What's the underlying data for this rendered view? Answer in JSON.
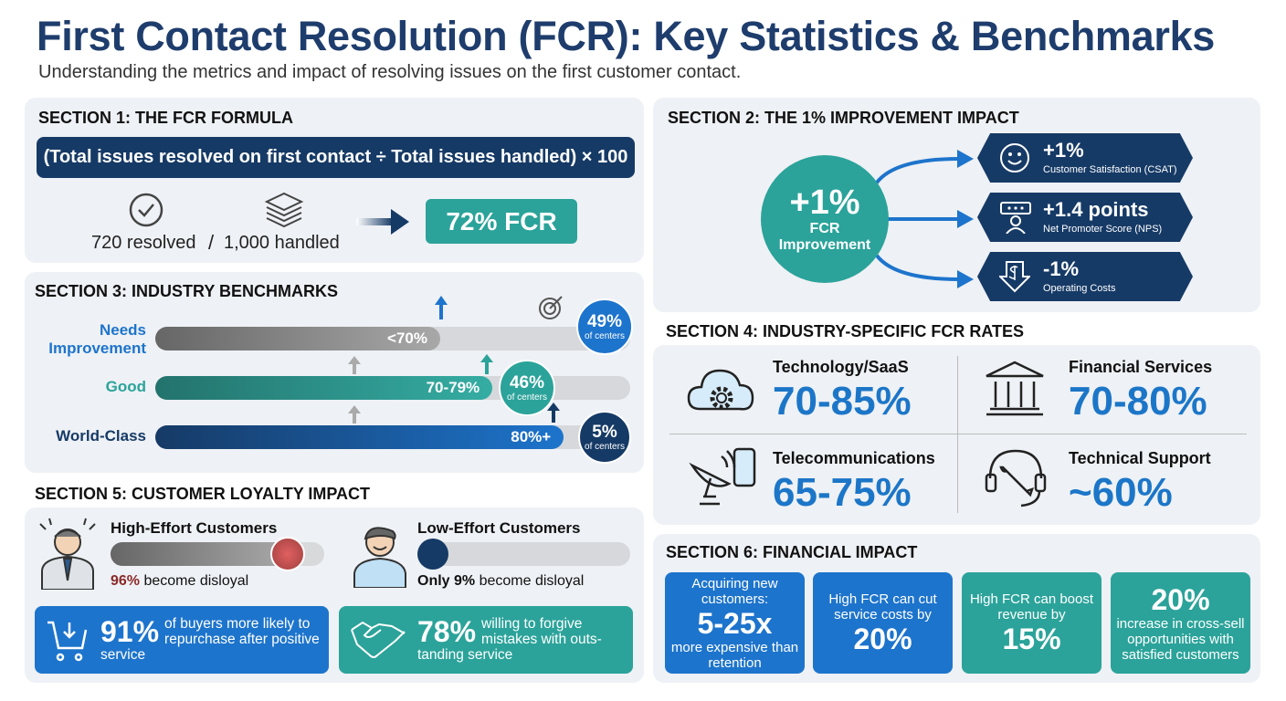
{
  "title": "First Contact Resolution (FCR): Key Statistics & Benchmarks",
  "subtitle": "Understanding the metrics and impact of resolving issues on the first customer contact.",
  "colors": {
    "navy": "#163a66",
    "blue": "#1d74cc",
    "teal": "#2ba39a",
    "gray": "#8a8c8f",
    "red": "#8b2a2a"
  },
  "section1": {
    "title": "SECTION 1: THE FCR FORMULA",
    "formula": "(Total issues resolved on first contact ÷ Total issues handled) × 100",
    "resolved": "720 resolved",
    "slash": "/",
    "handled": "1,000 handled",
    "result": "72% FCR",
    "icons": [
      "check-circle-icon",
      "layers-icon",
      "arrow-right-icon"
    ]
  },
  "section2": {
    "title": "SECTION 2: THE 1% IMPROVEMENT IMPACT",
    "center_value": "+1%",
    "center_label": "FCR Improvement",
    "items": [
      {
        "value": "+1%",
        "label": "Customer Satisfaction (CSAT)",
        "icon": "smiley-icon"
      },
      {
        "value": "+1.4 points",
        "label": "Net Promoter Score (NPS)",
        "icon": "rating-person-icon"
      },
      {
        "value": "-1%",
        "label": "Operating Costs",
        "icon": "dollar-down-icon"
      }
    ]
  },
  "section3": {
    "title": "SECTION 3: INDUSTRY BENCHMARKS",
    "rows": [
      {
        "label": "Needs Improvement",
        "range": "<70%",
        "share": "49%",
        "share_label": "of centers",
        "fill_percent": 60
      },
      {
        "label": "Good",
        "range": "70-79%",
        "share": "46%",
        "share_label": "of centers",
        "fill_percent": 71
      },
      {
        "label": "World-Class",
        "range": "80%+",
        "share": "5%",
        "share_label": "of centers",
        "fill_percent": 86
      }
    ]
  },
  "section4": {
    "title": "SECTION 4: INDUSTRY-SPECIFIC FCR RATES",
    "items": [
      {
        "name": "Technology/SaaS",
        "value": "70-85%",
        "icon": "cloud-gear-icon"
      },
      {
        "name": "Financial Services",
        "value": "70-80%",
        "icon": "bank-icon"
      },
      {
        "name": "Telecommunications",
        "value": "65-75%",
        "icon": "satellite-phone-icon"
      },
      {
        "name": "Technical Support",
        "value": "~60%",
        "icon": "headset-wrench-icon"
      }
    ]
  },
  "section5": {
    "title": "SECTION 5: CUSTOMER LOYALTY IMPACT",
    "high": {
      "title": "High-Effort Customers",
      "pct": "96%",
      "text": "become disloyal",
      "level": 96
    },
    "low": {
      "title": "Low-Effort Customers",
      "prefix": "Only",
      "pct": "9%",
      "text": "become disloyal",
      "level": 9
    },
    "stat1": {
      "value": "91%",
      "text": "of buyers more likely to repurchase after positive service"
    },
    "stat2": {
      "value": "78%",
      "text": "willing to forgive mistakes with outs-tanding service"
    }
  },
  "section6": {
    "title": "SECTION 6: FINANCIAL IMPACT",
    "boxes": [
      {
        "top": "Acquiring new customers:",
        "value": "5-25x",
        "bottom": "more expensive than retention"
      },
      {
        "top": "High FCR can cut service costs by",
        "value": "20%",
        "bottom": ""
      },
      {
        "top": "High FCR can boost revenue by",
        "value": "15%",
        "bottom": ""
      },
      {
        "top": "",
        "value": "20%",
        "bottom": "increase in cross-sell opportunities with satisfied customers"
      }
    ]
  }
}
